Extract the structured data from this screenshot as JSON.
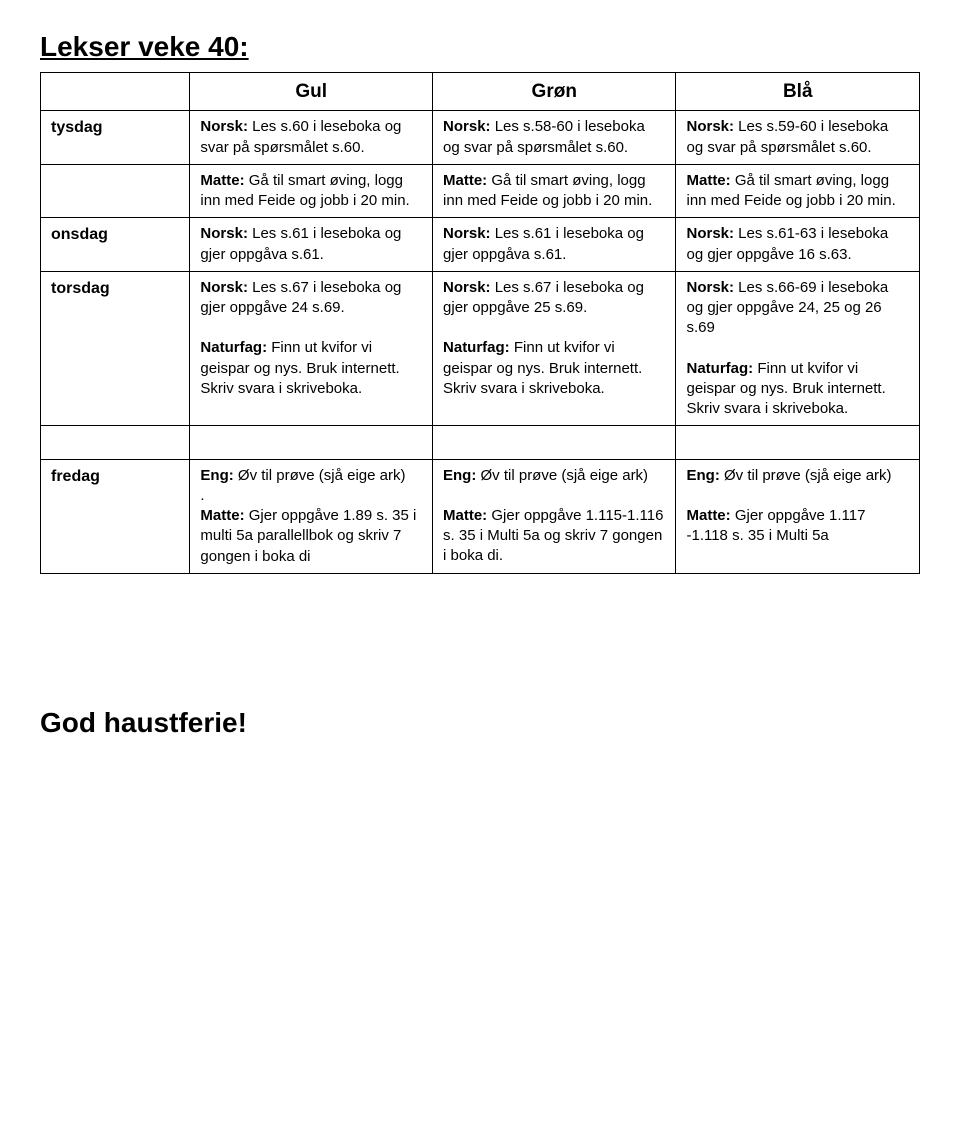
{
  "title": "Lekser veke 40:",
  "headers": {
    "c0": "",
    "c1": "Gul",
    "c2": "Grøn",
    "c3": "Blå"
  },
  "rows": {
    "tysdag": {
      "label": "tysdag",
      "gul_a": "Norsk: Les s.60 i leseboka og svar på spørsmålet s.60.",
      "gron_a": "Norsk: Les s.58-60 i leseboka og svar på spørsmålet s.60.",
      "bla_a": "Norsk: Les s.59-60 i leseboka og svar på spørsmålet s.60.",
      "gul_b": "Matte: Gå til smart øving, logg inn med Feide og jobb i 20 min.",
      "gron_b": "Matte: Gå til smart øving, logg inn med Feide og jobb i 20 min.",
      "bla_b": "Matte: Gå til smart øving, logg inn med Feide og jobb i 20 min."
    },
    "onsdag": {
      "label": "onsdag",
      "gul": "Norsk: Les s.61 i leseboka og gjer oppgåva s.61.",
      "gron": "Norsk: Les s.61 i leseboka og gjer oppgåva s.61.",
      "bla": "Norsk: Les s.61-63 i leseboka og gjer oppgåve 16 s.63."
    },
    "torsdag": {
      "label": "torsdag",
      "gul_a": "Norsk: Les s.67 i leseboka og gjer oppgåve 24 s.69.",
      "gron_a": "Norsk: Les s.67 i leseboka og gjer oppgåve 25 s.69.",
      "bla_a": "Norsk: Les s.66-69 i leseboka og gjer oppgåve 24, 25 og 26 s.69",
      "gul_b": "Naturfag: Finn ut kvifor vi geispar og nys. Bruk internett. Skriv svara i skriveboka.",
      "gron_b": "Naturfag:  Finn ut kvifor vi geispar og nys. Bruk internett. Skriv svara i skriveboka.",
      "bla_b": "Naturfag:  Finn ut kvifor vi geispar og nys. Bruk internett. Skriv svara i skriveboka."
    },
    "fredag": {
      "label": "fredag",
      "gul_a": "Eng: Øv til prøve (sjå eige ark)",
      "gul_dot": ".",
      "gul_b": "Matte:  Gjer oppgåve 1.89 s. 35 i multi 5a parallellbok og skriv 7 gongen i boka di",
      "gron_a": "Eng:  Øv til prøve (sjå eige ark)",
      "gron_b": "Matte:  Gjer oppgåve 1.115-1.116 s. 35 i Multi 5a og skriv 7 gongen i boka di.",
      "bla_a": "Eng:  Øv til prøve (sjå eige ark)",
      "bla_b": "Matte:  Gjer oppgåve 1.117 -1.118 s. 35 i Multi 5a"
    }
  },
  "footer": "God haustferie!",
  "colors": {
    "text": "#000000",
    "bg": "#ffffff",
    "border": "#000000"
  }
}
